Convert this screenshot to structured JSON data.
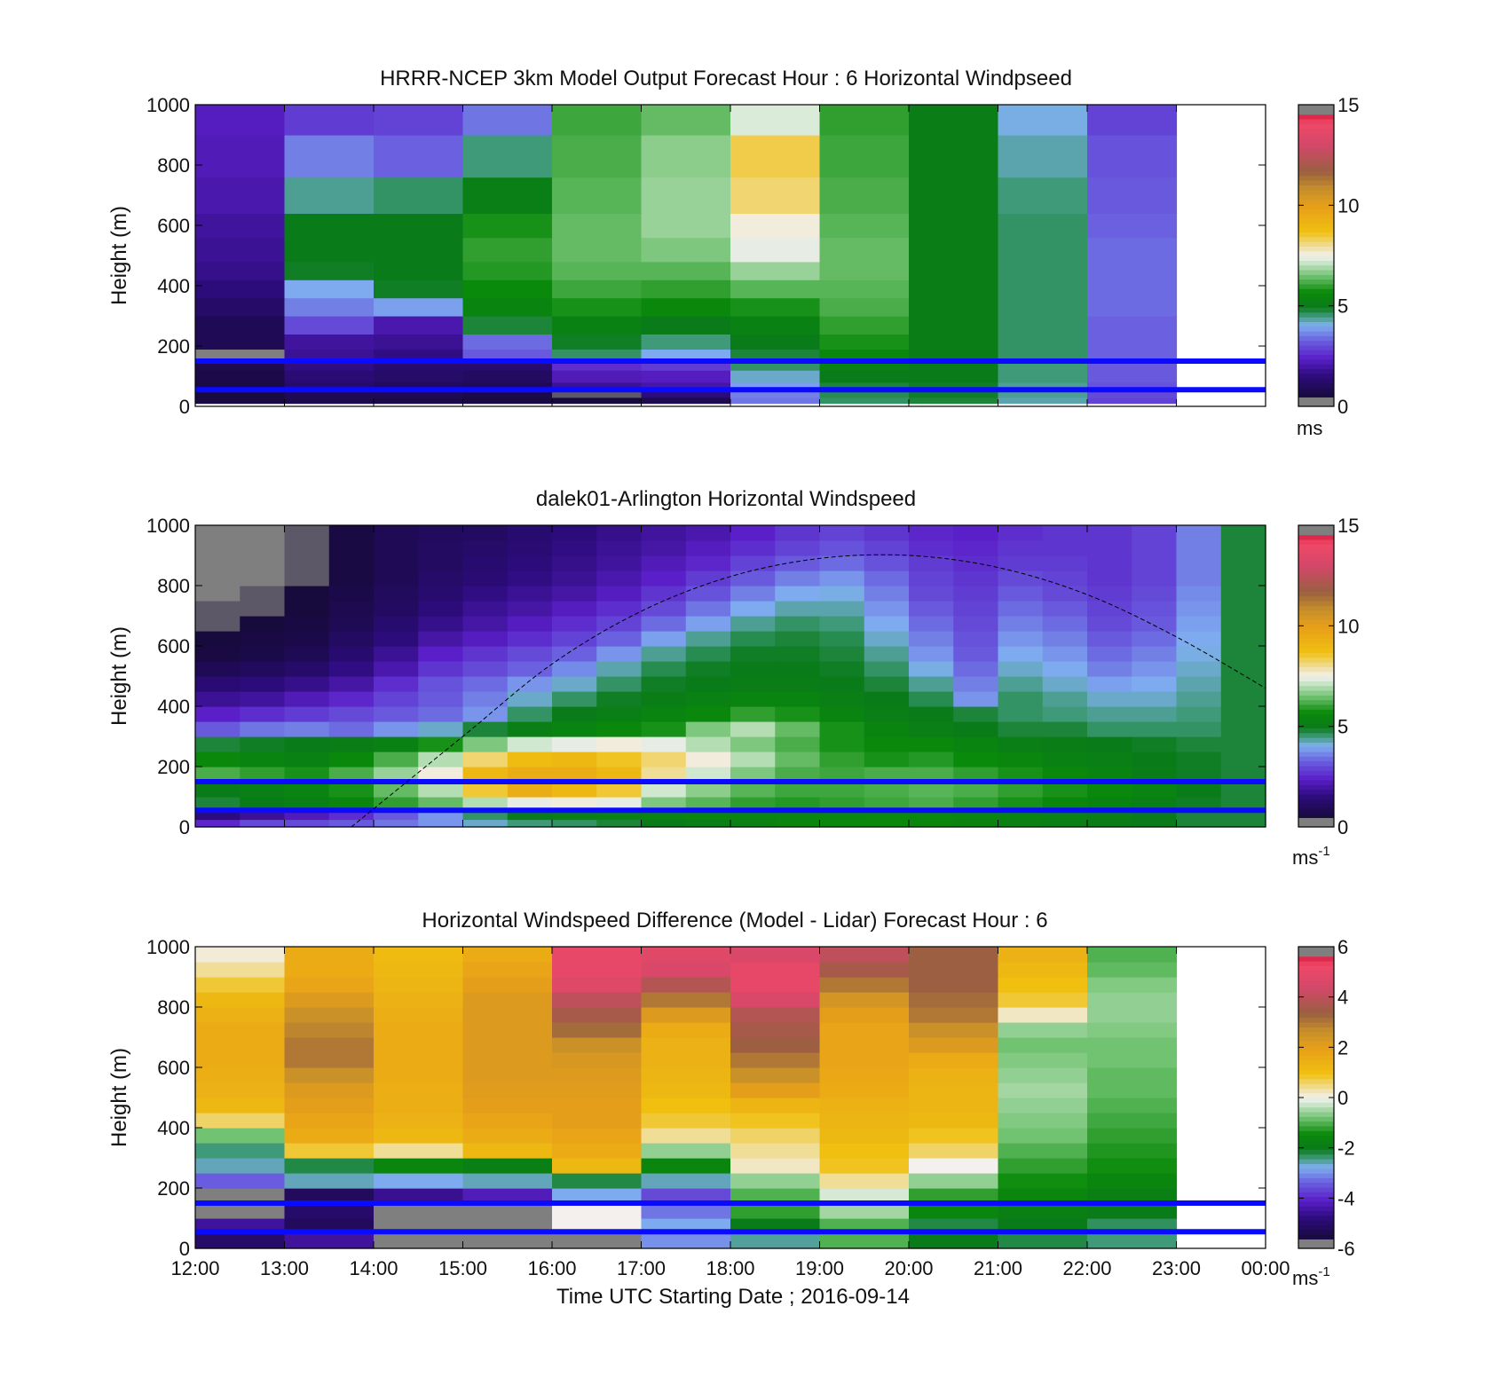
{
  "figure": {
    "xlabel": "Time UTC  Starting Date ; 2016-09-14"
  },
  "chart_data": [
    {
      "type": "heatmap",
      "title": "HRRR-NCEP 3km Model Output   Forecast Hour : 6 Horizontal Windpseed",
      "ylabel": "Height (m)",
      "xlim": [
        "12:00",
        "00:00"
      ],
      "ylim": [
        0,
        1000
      ],
      "yticks": [
        0,
        200,
        400,
        600,
        800,
        1000
      ],
      "x_tick_labels_shown": false,
      "colorbar": {
        "min": 0,
        "max": 15,
        "ticks": [
          0,
          5,
          10,
          15
        ],
        "unit": "ms",
        "unit_sup": ""
      },
      "reference_lines_m": [
        150,
        55
      ],
      "column_starts": [
        "12:00",
        "13:00",
        "14:00",
        "15:00",
        "16:00",
        "17:00",
        "18:00",
        "19:00",
        "20:00",
        "21:00",
        "22:00"
      ],
      "heights_m": [
        10,
        30,
        50,
        80,
        120,
        150,
        190,
        240,
        300,
        360,
        420,
        480,
        560,
        640,
        760,
        900,
        1000
      ],
      "values": [
        [
          0.6,
          0.8,
          0.7,
          0.6,
          0.5,
          0.8,
          3.5,
          4.6,
          4.8,
          4.3,
          2.9
        ],
        [
          0.5,
          0.9,
          0.9,
          0.7,
          0.4,
          1.5,
          3.6,
          4.7,
          4.9,
          4.4,
          3.0
        ],
        [
          0.6,
          1.2,
          1.0,
          0.9,
          1.8,
          2.0,
          3.9,
          4.8,
          4.9,
          4.4,
          3.1
        ],
        [
          0.7,
          1.4,
          1.2,
          1.1,
          2.2,
          2.3,
          4.2,
          5.0,
          5.0,
          4.5,
          3.2
        ],
        [
          0.8,
          1.6,
          1.3,
          1.3,
          2.6,
          2.8,
          4.6,
          5.3,
          5.0,
          4.5,
          3.2
        ],
        [
          0.0,
          1.8,
          1.6,
          3.2,
          4.6,
          4.0,
          4.8,
          5.6,
          5.1,
          4.6,
          3.3
        ],
        [
          0.9,
          1.9,
          1.8,
          3.4,
          4.9,
          4.5,
          5.0,
          5.8,
          5.1,
          4.6,
          3.3
        ],
        [
          0.9,
          3.0,
          2.1,
          4.8,
          5.3,
          5.0,
          5.3,
          6.0,
          5.1,
          4.6,
          3.3
        ],
        [
          1.2,
          3.6,
          3.9,
          5.4,
          5.8,
          5.6,
          5.8,
          6.2,
          5.1,
          4.6,
          3.4
        ],
        [
          1.5,
          4.0,
          4.9,
          5.7,
          6.1,
          6.0,
          6.3,
          6.3,
          5.1,
          4.6,
          3.4
        ],
        [
          1.7,
          4.9,
          5.0,
          5.9,
          6.3,
          6.3,
          6.8,
          6.4,
          5.1,
          4.6,
          3.4
        ],
        [
          1.8,
          5.0,
          5.0,
          6.0,
          6.4,
          6.6,
          7.4,
          6.4,
          5.1,
          4.6,
          3.4
        ],
        [
          1.9,
          5.0,
          5.0,
          5.8,
          6.4,
          6.8,
          7.6,
          6.3,
          5.1,
          4.6,
          3.3
        ],
        [
          2.1,
          4.4,
          4.6,
          5.2,
          6.3,
          6.8,
          8.2,
          6.2,
          5.1,
          4.5,
          3.2
        ],
        [
          2.2,
          3.6,
          3.3,
          4.5,
          6.2,
          6.7,
          8.4,
          6.1,
          5.1,
          4.3,
          3.1
        ],
        [
          2.3,
          2.8,
          2.9,
          3.5,
          6.1,
          6.4,
          7.3,
          6.0,
          5.1,
          4.1,
          2.9
        ]
      ]
    },
    {
      "type": "heatmap",
      "title": "dalek01-Arlington  Horizontal Windspeed",
      "ylabel": "Height (m)",
      "xlim": [
        "12:00",
        "00:00"
      ],
      "ylim": [
        0,
        1000
      ],
      "yticks": [
        0,
        200,
        400,
        600,
        800,
        1000
      ],
      "x_tick_labels_shown": false,
      "colorbar": {
        "min": 0,
        "max": 15,
        "ticks": [
          0,
          5,
          10,
          15
        ],
        "unit": "ms",
        "unit_sup": "-1"
      },
      "reference_lines_m": [
        150,
        55
      ],
      "curve_note": "dashed arc",
      "curve_points": [
        [
          "13:45",
          0
        ],
        [
          "15:00",
          300
        ],
        [
          "16:00",
          540
        ],
        [
          "17:00",
          715
        ],
        [
          "18:00",
          830
        ],
        [
          "19:00",
          890
        ],
        [
          "20:00",
          900
        ],
        [
          "21:00",
          860
        ],
        [
          "22:00",
          770
        ],
        [
          "23:00",
          630
        ],
        [
          "00:00",
          460
        ]
      ],
      "column_starts": [
        "12:00",
        "12:30",
        "13:00",
        "13:30",
        "14:00",
        "14:30",
        "15:00",
        "15:30",
        "16:00",
        "16:30",
        "17:00",
        "17:30",
        "18:00",
        "18:30",
        "19:00",
        "19:30",
        "20:00",
        "20:30",
        "21:00",
        "21:30",
        "22:00",
        "22:30",
        "23:00",
        "23:30"
      ],
      "heights_m": [
        0,
        25,
        50,
        100,
        150,
        200,
        250,
        300,
        350,
        400,
        450,
        500,
        550,
        600,
        650,
        700,
        750,
        800,
        850,
        900,
        950,
        1000
      ],
      "values": [
        [
          2.5,
          3.0,
          3.0,
          3.2,
          3.5,
          3.8,
          4.2,
          4.5,
          4.6,
          4.8,
          5.0,
          5.2,
          5.3,
          5.5,
          5.6,
          5.6,
          5.5,
          5.4,
          5.3,
          5.2,
          5.1,
          5.0,
          4.8,
          4.8
        ],
        [
          1.5,
          1.8,
          2.2,
          2.6,
          3.2,
          3.8,
          4.6,
          5.0,
          5.2,
          5.3,
          5.4,
          5.5,
          5.5,
          5.5,
          5.6,
          5.7,
          5.6,
          5.5,
          5.4,
          5.3,
          5.2,
          5.0,
          4.8,
          4.8
        ],
        [
          4.8,
          5.0,
          5.2,
          5.5,
          6.0,
          6.4,
          7.0,
          7.4,
          7.6,
          7.4,
          6.6,
          6.3,
          6.0,
          5.9,
          6.0,
          6.1,
          6.2,
          6.0,
          5.8,
          5.6,
          5.4,
          5.2,
          4.9,
          4.8
        ],
        [
          5.0,
          5.2,
          5.4,
          5.8,
          6.4,
          7.0,
          8.5,
          9.4,
          9.0,
          8.5,
          7.2,
          6.7,
          6.3,
          6.1,
          6.1,
          6.2,
          6.3,
          6.2,
          6.0,
          5.8,
          5.6,
          5.4,
          5.0,
          4.8
        ],
        [
          6.2,
          6.0,
          5.8,
          6.2,
          6.8,
          7.6,
          9.0,
          9.4,
          9.4,
          9.0,
          8.0,
          7.2,
          6.6,
          6.2,
          6.1,
          6.2,
          6.2,
          6.0,
          5.8,
          5.6,
          5.4,
          5.1,
          4.9,
          4.8
        ],
        [
          5.6,
          5.4,
          5.3,
          5.6,
          6.2,
          7.0,
          8.2,
          8.8,
          9.0,
          8.6,
          8.2,
          7.6,
          7.0,
          6.4,
          6.0,
          5.8,
          5.9,
          5.7,
          5.5,
          5.3,
          5.2,
          5.0,
          4.9,
          4.8
        ],
        [
          4.8,
          4.9,
          5.0,
          5.1,
          5.3,
          5.8,
          6.6,
          7.2,
          7.4,
          7.6,
          7.4,
          7.0,
          6.6,
          6.2,
          5.8,
          5.6,
          5.6,
          5.4,
          5.2,
          5.1,
          5.0,
          4.9,
          4.8,
          4.8
        ],
        [
          3.2,
          3.5,
          3.6,
          3.4,
          3.8,
          4.2,
          4.8,
          5.2,
          5.4,
          5.6,
          5.8,
          6.6,
          7.0,
          6.4,
          5.8,
          5.4,
          5.2,
          5.0,
          4.8,
          4.8,
          4.6,
          4.6,
          4.6,
          4.8
        ],
        [
          2.4,
          2.6,
          2.8,
          3.0,
          3.2,
          3.4,
          3.8,
          4.6,
          5.0,
          5.2,
          5.4,
          5.6,
          6.0,
          5.8,
          5.4,
          5.2,
          5.0,
          4.8,
          4.6,
          4.5,
          4.4,
          4.4,
          4.5,
          4.8
        ],
        [
          1.8,
          1.9,
          2.2,
          2.5,
          2.9,
          3.2,
          3.6,
          4.2,
          4.6,
          4.9,
          5.1,
          5.3,
          5.4,
          5.4,
          5.2,
          5.0,
          4.7,
          3.8,
          4.6,
          4.4,
          4.2,
          4.2,
          4.4,
          4.8
        ],
        [
          1.4,
          1.5,
          1.7,
          2.0,
          2.6,
          3.1,
          3.4,
          3.8,
          4.2,
          4.6,
          4.9,
          5.0,
          5.1,
          5.1,
          5.0,
          4.8,
          4.4,
          3.6,
          4.4,
          4.2,
          3.9,
          4.0,
          4.3,
          4.8
        ],
        [
          0.9,
          1.0,
          1.2,
          1.6,
          2.1,
          2.7,
          3.0,
          3.3,
          3.7,
          4.3,
          4.7,
          4.9,
          5.0,
          5.0,
          4.9,
          4.6,
          4.1,
          3.4,
          4.2,
          4.0,
          3.6,
          3.8,
          4.2,
          4.8
        ],
        [
          0.6,
          0.7,
          0.9,
          1.3,
          1.8,
          2.4,
          2.7,
          3.0,
          3.3,
          3.8,
          4.4,
          4.7,
          4.9,
          4.9,
          4.8,
          4.4,
          3.8,
          3.2,
          4.0,
          3.8,
          3.4,
          3.6,
          4.1,
          4.8
        ],
        [
          0.5,
          0.6,
          0.7,
          1.1,
          1.5,
          2.0,
          2.3,
          2.6,
          2.9,
          3.3,
          3.9,
          4.4,
          4.7,
          4.8,
          4.7,
          4.2,
          3.6,
          3.1,
          3.8,
          3.6,
          3.2,
          3.4,
          4.0,
          4.8
        ],
        [
          0.4,
          0.5,
          0.6,
          0.9,
          1.3,
          1.7,
          2.0,
          2.3,
          2.6,
          2.9,
          3.4,
          3.9,
          4.4,
          4.6,
          4.5,
          4.0,
          3.4,
          3.0,
          3.6,
          3.4,
          3.0,
          3.2,
          3.9,
          4.8
        ],
        [
          0.4,
          0.4,
          0.5,
          0.8,
          1.1,
          1.5,
          1.8,
          2.0,
          2.3,
          2.6,
          3.0,
          3.5,
          4.0,
          4.3,
          4.3,
          3.8,
          3.2,
          2.9,
          3.4,
          3.2,
          2.9,
          3.1,
          3.8,
          4.8
        ],
        [
          0.3,
          0.4,
          0.5,
          0.7,
          1.0,
          1.3,
          1.6,
          1.8,
          2.0,
          2.3,
          2.7,
          3.1,
          3.6,
          4.0,
          4.1,
          3.6,
          3.0,
          2.8,
          3.2,
          3.0,
          2.8,
          3.0,
          3.7,
          4.8
        ],
        [
          0.3,
          0.3,
          0.4,
          0.6,
          0.9,
          1.2,
          1.4,
          1.6,
          1.8,
          2.1,
          2.4,
          2.8,
          3.2,
          3.6,
          3.8,
          3.4,
          2.9,
          2.7,
          3.0,
          2.9,
          2.7,
          2.9,
          3.6,
          4.8
        ],
        [
          0.3,
          0.3,
          0.4,
          0.6,
          0.9,
          1.1,
          1.3,
          1.5,
          1.7,
          1.9,
          2.2,
          2.5,
          2.9,
          3.2,
          3.4,
          3.1,
          2.8,
          2.6,
          2.8,
          2.8,
          2.7,
          2.9,
          3.6,
          4.8
        ],
        [
          0.3,
          0.3,
          0.4,
          0.6,
          0.9,
          1.1,
          1.2,
          1.4,
          1.6,
          1.8,
          2.0,
          2.3,
          2.6,
          2.9,
          3.1,
          2.9,
          2.6,
          2.5,
          2.7,
          2.7,
          2.7,
          2.9,
          3.6,
          4.8
        ],
        [
          0.3,
          0.3,
          0.4,
          0.6,
          0.9,
          1.0,
          1.1,
          1.3,
          1.5,
          1.7,
          1.9,
          2.1,
          2.4,
          2.7,
          2.9,
          2.7,
          2.5,
          2.4,
          2.6,
          2.7,
          2.7,
          2.9,
          3.6,
          4.8
        ]
      ]
    },
    {
      "type": "heatmap",
      "title": "Horizontal Windspeed Difference (Model - Lidar) Forecast Hour : 6",
      "ylabel": "Height (m)",
      "xlim": [
        "12:00",
        "00:00"
      ],
      "ylim": [
        0,
        1000
      ],
      "yticks": [
        0,
        200,
        400,
        600,
        800,
        1000
      ],
      "xticks": [
        "12:00",
        "13:00",
        "14:00",
        "15:00",
        "16:00",
        "17:00",
        "18:00",
        "19:00",
        "20:00",
        "21:00",
        "22:00",
        "23:00",
        "00:00"
      ],
      "colorbar": {
        "min": -6,
        "max": 6,
        "ticks": [
          -6,
          -4,
          -2,
          0,
          2,
          4,
          6
        ],
        "unit": "ms",
        "unit_sup": "-1"
      },
      "reference_lines_m": [
        150,
        55
      ],
      "column_starts": [
        "12:00",
        "13:00",
        "14:00",
        "15:00",
        "16:00",
        "17:00",
        "18:00",
        "19:00",
        "20:00",
        "21:00",
        "22:00"
      ],
      "heights_m": [
        0,
        50,
        100,
        150,
        200,
        250,
        300,
        350,
        400,
        450,
        500,
        550,
        600,
        650,
        700,
        750,
        800,
        850,
        900,
        950,
        1000
      ],
      "values": [
        [
          -5.0,
          -4.5,
          -6.0,
          -6.0,
          -6.0,
          -3.0,
          -2.5,
          -1.0,
          -2.0,
          -2.2,
          -2.4
        ],
        [
          -4.5,
          -5.2,
          -6.0,
          -6.0,
          0.0,
          -2.8,
          -2.0,
          -1.0,
          -2.2,
          -2.0,
          -2.3
        ],
        [
          -6.0,
          -5.0,
          -6.0,
          -6.0,
          0.0,
          -3.2,
          -1.2,
          -0.5,
          -1.6,
          -1.8,
          -2.0
        ],
        [
          -6.0,
          -5.2,
          -4.6,
          -4.2,
          -2.8,
          -3.6,
          -1.0,
          -0.2,
          -1.2,
          -1.6,
          -1.8
        ],
        [
          -3.4,
          -2.6,
          -2.8,
          -2.6,
          -2.2,
          -2.6,
          -0.6,
          0.4,
          -0.6,
          -1.4,
          -1.6
        ],
        [
          -2.6,
          -2.2,
          -1.6,
          -1.8,
          1.2,
          -1.6,
          0.2,
          0.9,
          0.0,
          -1.2,
          -1.4
        ],
        [
          -2.4,
          0.8,
          0.4,
          1.2,
          1.6,
          -0.6,
          0.4,
          1.0,
          0.6,
          -1.0,
          -1.3
        ],
        [
          -0.8,
          1.6,
          1.2,
          1.6,
          1.8,
          0.4,
          0.6,
          1.2,
          0.9,
          -0.8,
          -1.2
        ],
        [
          0.6,
          1.8,
          1.4,
          1.8,
          2.0,
          0.8,
          0.9,
          1.3,
          1.2,
          -0.7,
          -1.1
        ],
        [
          1.2,
          2.0,
          1.5,
          2.0,
          2.0,
          1.0,
          1.3,
          1.4,
          1.3,
          -0.6,
          -1.0
        ],
        [
          1.4,
          2.2,
          1.5,
          2.1,
          2.1,
          1.2,
          2.0,
          1.6,
          1.3,
          -0.5,
          -0.9
        ],
        [
          1.5,
          2.6,
          1.6,
          2.2,
          2.2,
          1.3,
          2.6,
          1.7,
          1.4,
          -0.6,
          -0.9
        ],
        [
          1.6,
          3.0,
          1.6,
          2.2,
          2.3,
          1.4,
          3.0,
          1.8,
          1.6,
          -0.7,
          -0.8
        ],
        [
          1.6,
          3.0,
          1.6,
          2.2,
          2.6,
          1.4,
          3.4,
          1.8,
          2.2,
          -0.8,
          -0.8
        ],
        [
          1.6,
          2.8,
          1.6,
          2.2,
          3.2,
          1.6,
          3.6,
          1.8,
          2.6,
          -0.6,
          -0.7
        ],
        [
          1.4,
          2.6,
          1.5,
          2.2,
          3.6,
          2.2,
          3.8,
          2.0,
          3.0,
          0.2,
          -0.6
        ],
        [
          1.2,
          2.2,
          1.4,
          2.2,
          4.0,
          3.0,
          4.6,
          2.4,
          3.2,
          0.8,
          -0.6
        ],
        [
          0.8,
          1.8,
          1.3,
          2.0,
          4.8,
          3.8,
          5.0,
          3.0,
          3.4,
          1.0,
          -0.7
        ],
        [
          0.4,
          1.6,
          1.2,
          1.8,
          5.0,
          4.6,
          5.0,
          3.6,
          3.4,
          1.2,
          -0.9
        ],
        [
          0.1,
          1.6,
          1.1,
          1.6,
          5.0,
          4.8,
          4.6,
          4.0,
          3.4,
          1.4,
          -1.0
        ]
      ]
    }
  ]
}
